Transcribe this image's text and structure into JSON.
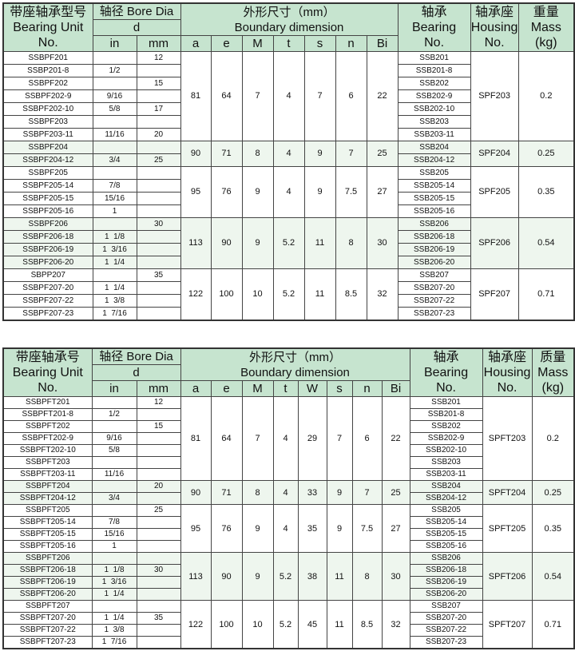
{
  "tables": [
    {
      "header": {
        "unit": [
          "带座轴承型号",
          "Bearing Unit",
          "No."
        ],
        "bore": "轴径 Bore Dia",
        "bore_sym": "d",
        "bore_in": "in",
        "bore_mm": "mm",
        "dim_cn": "外形尺寸（mm）",
        "dim_en": "Boundary dimension",
        "dims": [
          "a",
          "e",
          "M",
          "t",
          "s",
          "n",
          "Bi"
        ],
        "bearing": [
          "轴承",
          "Bearing",
          "No."
        ],
        "housing": [
          "轴承座",
          "Housing",
          "No."
        ],
        "mass": [
          "重量",
          "Mass",
          "(kg)"
        ]
      },
      "groups": [
        {
          "rows": [
            {
              "unit": "SSBPF201",
              "in": "",
              "mm": "12",
              "bearing": "SSB201"
            },
            {
              "unit": "SSBP201-8",
              "in": "1/2",
              "mm": "",
              "bearing": "SSB201-8"
            },
            {
              "unit": "SSBPF202",
              "in": "",
              "mm": "15",
              "bearing": "SSB202"
            },
            {
              "unit": "SSBPF202-9",
              "in": "9/16",
              "mm": "",
              "bearing": "SSB202-9"
            },
            {
              "unit": "SSBPF202-10",
              "in": "5/8",
              "mm": "17",
              "bearing": "SSB202-10"
            },
            {
              "unit": "SSBPF203",
              "in": "",
              "mm": "",
              "bearing": "SSB203"
            },
            {
              "unit": "SSBPF203-11",
              "in": "11/16",
              "mm": "20",
              "bearing": "SSB203-11"
            }
          ],
          "dims": [
            "81",
            "64",
            "7",
            "4",
            "7",
            "6",
            "22"
          ],
          "housing": "SPF203",
          "mass": "0.2"
        },
        {
          "rows": [
            {
              "unit": "SSBPF204",
              "in": "",
              "mm": "",
              "bearing": "SSB204"
            },
            {
              "unit": "SSBPF204-12",
              "in": "3/4",
              "mm": "25",
              "bearing": "SSB204-12"
            }
          ],
          "dims": [
            "90",
            "71",
            "8",
            "4",
            "9",
            "7",
            "25"
          ],
          "housing": "SPF204",
          "mass": "0.25"
        },
        {
          "rows": [
            {
              "unit": "SSBPF205",
              "in": "",
              "mm": "",
              "bearing": "SSB205"
            },
            {
              "unit": "SSBPF205-14",
              "in": "7/8",
              "mm": "",
              "bearing": "SSB205-14"
            },
            {
              "unit": "SSBPF205-15",
              "in": "15/16",
              "mm": "",
              "bearing": "SSB205-15"
            },
            {
              "unit": "SSBPF205-16",
              "in": "1",
              "mm": "",
              "bearing": "SSB205-16"
            }
          ],
          "dims": [
            "95",
            "76",
            "9",
            "4",
            "9",
            "7.5",
            "27"
          ],
          "housing": "SPF205",
          "mass": "0.35"
        },
        {
          "rows": [
            {
              "unit": "SSBPF206",
              "in": "",
              "mm": "30",
              "bearing": "SSB206"
            },
            {
              "unit": "SSBPF206-18",
              "in": "1  1/8",
              "mm": "",
              "bearing": "SSB206-18"
            },
            {
              "unit": "SSBPF206-19",
              "in": "1  3/16",
              "mm": "",
              "bearing": "SSB206-19"
            },
            {
              "unit": "SSBPF206-20",
              "in": "1  1/4",
              "mm": "",
              "bearing": "SSB206-20"
            }
          ],
          "dims": [
            "113",
            "90",
            "9",
            "5.2",
            "11",
            "8",
            "30"
          ],
          "housing": "SPF206",
          "mass": "0.54"
        },
        {
          "rows": [
            {
              "unit": "SBPP207",
              "in": "",
              "mm": "35",
              "bearing": "SSB207"
            },
            {
              "unit": "SSBPF207-20",
              "in": "1  1/4",
              "mm": "",
              "bearing": "SSB207-20"
            },
            {
              "unit": "SSBPF207-22",
              "in": "1  3/8",
              "mm": "",
              "bearing": "SSB207-22"
            },
            {
              "unit": "SSBPF207-23",
              "in": "1  7/16",
              "mm": "",
              "bearing": "SSB207-23"
            }
          ],
          "dims": [
            "122",
            "100",
            "10",
            "5.2",
            "11",
            "8.5",
            "32"
          ],
          "housing": "SPF207",
          "mass": "0.71"
        }
      ]
    },
    {
      "header": {
        "unit": [
          "带座轴承号",
          "Bearing Unit",
          "No."
        ],
        "bore": "轴径 Bore Dia",
        "bore_sym": "d",
        "bore_in": "in",
        "bore_mm": "mm",
        "dim_cn": "外形尺寸（mm）",
        "dim_en": "Boundary dimension",
        "dims": [
          "a",
          "e",
          "M",
          "t",
          "W",
          "s",
          "n",
          "Bi"
        ],
        "bearing": [
          "轴承",
          "Bearing",
          "No."
        ],
        "housing": [
          "轴承座",
          "Housing",
          "No."
        ],
        "mass": [
          "质量",
          "Mass",
          "(kg)"
        ]
      },
      "groups": [
        {
          "rows": [
            {
              "unit": "SSBPFT201",
              "in": "",
              "mm": "12",
              "bearing": "SSB201"
            },
            {
              "unit": "SSBPFT201-8",
              "in": "1/2",
              "mm": "",
              "bearing": "SSB201-8"
            },
            {
              "unit": "SSBPFT202",
              "in": "",
              "mm": "15",
              "bearing": "SSB202"
            },
            {
              "unit": "SSBPFT202-9",
              "in": "9/16",
              "mm": "",
              "bearing": "SSB202-9"
            },
            {
              "unit": "SSBPFT202-10",
              "in": "5/8",
              "mm": "",
              "bearing": "SSB202-10"
            },
            {
              "unit": "SSBPFT203",
              "in": "",
              "mm": "",
              "bearing": "SSB203"
            },
            {
              "unit": "SSBPFT203-11",
              "in": "11/16",
              "mm": "",
              "bearing": "SSB203-11"
            }
          ],
          "dims": [
            "81",
            "64",
            "7",
            "4",
            "29",
            "7",
            "6",
            "22"
          ],
          "housing": "SPFT203",
          "mass": "0.2"
        },
        {
          "rows": [
            {
              "unit": "SSBPFT204",
              "in": "",
              "mm": "20",
              "bearing": "SSB204"
            },
            {
              "unit": "SSBPFT204-12",
              "in": "3/4",
              "mm": "",
              "bearing": "SSB204-12"
            }
          ],
          "dims": [
            "90",
            "71",
            "8",
            "4",
            "33",
            "9",
            "7",
            "25"
          ],
          "housing": "SPFT204",
          "mass": "0.25"
        },
        {
          "rows": [
            {
              "unit": "SSBPFT205",
              "in": "",
              "mm": "25",
              "bearing": "SSB205"
            },
            {
              "unit": "SSBPFT205-14",
              "in": "7/8",
              "mm": "",
              "bearing": "SSB205-14"
            },
            {
              "unit": "SSBPFT205-15",
              "in": "15/16",
              "mm": "",
              "bearing": "SSB205-15"
            },
            {
              "unit": "SSBPFT205-16",
              "in": "1",
              "mm": "",
              "bearing": "SSB205-16"
            }
          ],
          "dims": [
            "95",
            "76",
            "9",
            "4",
            "35",
            "9",
            "7.5",
            "27"
          ],
          "housing": "SPFT205",
          "mass": "0.35"
        },
        {
          "rows": [
            {
              "unit": "SSBPFT206",
              "in": "",
              "mm": "",
              "bearing": "SSB206"
            },
            {
              "unit": "SSBPFT206-18",
              "in": "1  1/8",
              "mm": "30",
              "bearing": "SSB206-18"
            },
            {
              "unit": "SSBPFT206-19",
              "in": "1  3/16",
              "mm": "",
              "bearing": "SSB206-19"
            },
            {
              "unit": "SSBPFT206-20",
              "in": "1  1/4",
              "mm": "",
              "bearing": "SSB206-20"
            }
          ],
          "dims": [
            "113",
            "90",
            "9",
            "5.2",
            "38",
            "11",
            "8",
            "30"
          ],
          "housing": "SPFT206",
          "mass": "0.54"
        },
        {
          "rows": [
            {
              "unit": "SSBPFT207",
              "in": "",
              "mm": "",
              "bearing": "SSB207"
            },
            {
              "unit": "SSBPFT207-20",
              "in": "1  1/4",
              "mm": "35",
              "bearing": "SSB207-20"
            },
            {
              "unit": "SSBPFT207-22",
              "in": "1  3/8",
              "mm": "",
              "bearing": "SSB207-22"
            },
            {
              "unit": "SSBPFT207-23",
              "in": "1  7/16",
              "mm": "",
              "bearing": "SSB207-23"
            }
          ],
          "dims": [
            "122",
            "100",
            "10",
            "5.2",
            "45",
            "11",
            "8.5",
            "32"
          ],
          "housing": "SPFT207",
          "mass": "0.71"
        }
      ]
    }
  ],
  "colors": {
    "header": "#c6e4cf",
    "shade": "#eef6ee",
    "border": "#444444"
  }
}
